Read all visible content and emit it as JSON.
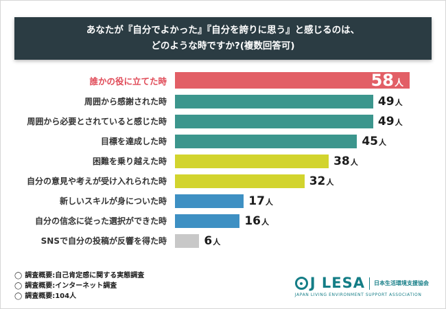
{
  "title": {
    "line1": "あなたが『自分でよかった』『自分を誇りに思う』と感じるのは、",
    "line2": "どのような時ですか?(複数回答可)"
  },
  "chart_data": {
    "type": "bar",
    "orientation": "horizontal",
    "title": "あなたが『自分でよかった』『自分を誇りに思う』と感じるのは、どのような時ですか?(複数回答可)",
    "categories": [
      "誰かの役に立てた時",
      "周囲から感謝された時",
      "周囲から必要とされていると感じた時",
      "目標を達成した時",
      "困難を乗り越えた時",
      "自分の意見や考えが受け入れられた時",
      "新しいスキルが身についた時",
      "自分の信念に従った選択ができた時",
      "SNSで自分の投稿が反響を得た時"
    ],
    "values": [
      58,
      49,
      49,
      45,
      38,
      32,
      17,
      16,
      6
    ],
    "unit": "人",
    "colors": [
      "#e25f66",
      "#3c968d",
      "#3c968d",
      "#3c968d",
      "#d2d42e",
      "#d2d42e",
      "#3e90c3",
      "#3e90c3",
      "#c8c8c8"
    ],
    "highlight_index": 0,
    "highlight_label_color": "#e04b58",
    "xlim": [
      0,
      58
    ],
    "legend": "none",
    "grid": "off"
  },
  "footer": {
    "bullet": "◯",
    "notes": [
      "調査概要:自己肯定感に関する実態調査",
      "調査概要:インターネット調査",
      "調査概要:104人"
    ]
  },
  "logo": {
    "name": "J LESA",
    "org_jp": "日本生活環境支援協会",
    "org_en": "JAPAN LIVING ENVIRONMENT SUPPORT ASSOCIATION",
    "color": "#147d86"
  },
  "colors": {
    "banner_bg": "#2b3c43",
    "banner_text": "#ffffff",
    "card_bg": "#ffffff"
  }
}
